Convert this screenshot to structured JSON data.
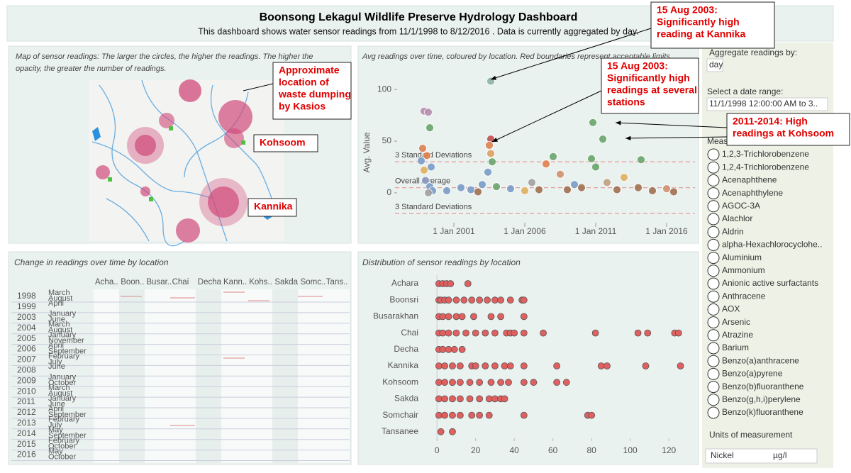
{
  "header": {
    "title": "Boonsong Lekagul Wildlife Preserve Hydrology Dashboard",
    "subtitle": "This dashboard shows water sensor readings from 11/1/1998 to 8/12/2016 . Data is currently aggregated by day."
  },
  "map_panel": {
    "caption": [
      "Map of sensor readings: The larger the circles, the higher the readings. The higher the",
      "opacity, the greater the number of readings."
    ],
    "annotations": [
      {
        "lines": [
          "Approximate",
          "location of",
          "waste dumping",
          "by Kasios"
        ]
      },
      {
        "lines": [
          "Kohsoom"
        ]
      },
      {
        "lines": [
          "Kannika"
        ]
      }
    ]
  },
  "scatter_panel": {
    "caption": "Avg readings over time, coloured by location. Red boundaries represent acceptable limits.",
    "y_label": "Avg. Value",
    "xlim": [
      1997,
      2018.25
    ],
    "ylim": [
      -22,
      120
    ],
    "xticks": [
      {
        "value": 2001,
        "label": "1 Jan 2001"
      },
      {
        "value": 2006,
        "label": "1 Jan 2006"
      },
      {
        "value": 2011,
        "label": "1 Jan 2011"
      },
      {
        "value": 2016,
        "label": "1 Jan 2016"
      }
    ],
    "yticks": [
      0,
      50,
      100
    ],
    "reference_lines": [
      {
        "label": "3 Standard Deviations",
        "value": 30
      },
      {
        "label": "Overall Average",
        "value": 5
      },
      {
        "label": "3 Standard Deviations",
        "value": -20
      }
    ],
    "points": [
      {
        "x": 2003.6,
        "y": 108,
        "color": "#8fb0a8"
      },
      {
        "x": 1998.9,
        "y": 79,
        "color": "#b48fb0"
      },
      {
        "x": 1999.2,
        "y": 78,
        "color": "#b48fb0"
      },
      {
        "x": 1999.3,
        "y": 63,
        "color": "#6aa56a"
      },
      {
        "x": 1998.8,
        "y": 43,
        "color": "#e08050"
      },
      {
        "x": 1999.1,
        "y": 36,
        "color": "#e08050"
      },
      {
        "x": 1998.7,
        "y": 31,
        "color": "#7b9cc8"
      },
      {
        "x": 1999.4,
        "y": 25,
        "color": "#7b9cc8"
      },
      {
        "x": 1998.9,
        "y": 22,
        "color": "#e0b060"
      },
      {
        "x": 1999.0,
        "y": 12,
        "color": "#8a9ac0"
      },
      {
        "x": 1999.3,
        "y": 6,
        "color": "#7b9cc8"
      },
      {
        "x": 1999.5,
        "y": 2,
        "color": "#7b9cc8"
      },
      {
        "x": 1999.2,
        "y": 0,
        "color": "#a0a0a0"
      },
      {
        "x": 2003.6,
        "y": 52,
        "color": "#c05050"
      },
      {
        "x": 2003.5,
        "y": 46,
        "color": "#e08050"
      },
      {
        "x": 2003.6,
        "y": 38,
        "color": "#e0a060"
      },
      {
        "x": 2003.7,
        "y": 30,
        "color": "#6aa56a"
      },
      {
        "x": 2003.4,
        "y": 20,
        "color": "#7b9cc8"
      },
      {
        "x": 2001.5,
        "y": 5,
        "color": "#7b9cc8"
      },
      {
        "x": 2002.2,
        "y": 3,
        "color": "#7b9cc8"
      },
      {
        "x": 2003,
        "y": 8,
        "color": "#7b9cc8"
      },
      {
        "x": 2004,
        "y": 6,
        "color": "#6aa56a"
      },
      {
        "x": 2005,
        "y": 4,
        "color": "#7b9cc8"
      },
      {
        "x": 2006,
        "y": 2,
        "color": "#e0b060"
      },
      {
        "x": 2006.5,
        "y": 10,
        "color": "#a0a0a0"
      },
      {
        "x": 2007.5,
        "y": 28,
        "color": "#e08050"
      },
      {
        "x": 2008,
        "y": 35,
        "color": "#6aa56a"
      },
      {
        "x": 2008.5,
        "y": 18,
        "color": "#d09070"
      },
      {
        "x": 2009,
        "y": 3,
        "color": "#a07050"
      },
      {
        "x": 2010,
        "y": 5,
        "color": "#a07050"
      },
      {
        "x": 2010.8,
        "y": 68,
        "color": "#6aa56a"
      },
      {
        "x": 2011.5,
        "y": 52,
        "color": "#6aa56a"
      },
      {
        "x": 2010.7,
        "y": 33,
        "color": "#6aa56a"
      },
      {
        "x": 2011,
        "y": 25,
        "color": "#6aa56a"
      },
      {
        "x": 2011.8,
        "y": 10,
        "color": "#c0a080"
      },
      {
        "x": 2012.5,
        "y": 3,
        "color": "#a07050"
      },
      {
        "x": 2013,
        "y": 15,
        "color": "#e0b060"
      },
      {
        "x": 2014.2,
        "y": 32,
        "color": "#6aa56a"
      },
      {
        "x": 2014,
        "y": 5,
        "color": "#a07050"
      },
      {
        "x": 2015,
        "y": 2,
        "color": "#a07050"
      },
      {
        "x": 2016,
        "y": 4,
        "color": "#d09070"
      },
      {
        "x": 2016.5,
        "y": 1,
        "color": "#a07050"
      },
      {
        "x": 2000.5,
        "y": 2,
        "color": "#7b9cc8"
      },
      {
        "x": 2002.7,
        "y": 1,
        "color": "#a07050"
      },
      {
        "x": 2007,
        "y": 3,
        "color": "#a07050"
      },
      {
        "x": 2009.5,
        "y": 8,
        "color": "#7b9cc8"
      }
    ],
    "annotations": [
      {
        "lines": [
          "15 Aug 2003:",
          "Significantly high",
          "reading at Kannika"
        ]
      },
      {
        "lines": [
          "15 Aug 2003:",
          "Significantly high",
          "readings at several",
          "stations"
        ]
      },
      {
        "lines": [
          "2011-2014: High",
          "readings at Kohsoom"
        ]
      }
    ]
  },
  "heatmap_panel": {
    "caption": "Change in readings over time by location",
    "columns": [
      "Acha..",
      "Boon..",
      "Busar..",
      "Chai",
      "Decha",
      "Kann..",
      "Kohs..",
      "Sakda",
      "Somc..",
      "Tans.."
    ],
    "rows": [
      {
        "year": "1998",
        "months": [
          "March",
          "August"
        ]
      },
      {
        "year": "1999",
        "months": [
          "April"
        ]
      },
      {
        "year": "2003",
        "months": [
          "January",
          "June"
        ]
      },
      {
        "year": "2004",
        "months": [
          "March",
          "August"
        ]
      },
      {
        "year": "2005",
        "months": [
          "January",
          "November"
        ]
      },
      {
        "year": "2006",
        "months": [
          "April",
          "September"
        ]
      },
      {
        "year": "2007",
        "months": [
          "February",
          "July"
        ]
      },
      {
        "year": "2008",
        "months": [
          "June"
        ]
      },
      {
        "year": "2009",
        "months": [
          "January",
          "October"
        ]
      },
      {
        "year": "2010",
        "months": [
          "March",
          "August"
        ]
      },
      {
        "year": "2011",
        "months": [
          "January",
          "June"
        ]
      },
      {
        "year": "2012",
        "months": [
          "April",
          "September"
        ]
      },
      {
        "year": "2013",
        "months": [
          "February",
          "July"
        ]
      },
      {
        "year": "2014",
        "months": [
          "May",
          "September"
        ]
      },
      {
        "year": "2015",
        "months": [
          "February",
          "October"
        ]
      },
      {
        "year": "2016",
        "months": [
          "May",
          "October"
        ]
      }
    ]
  },
  "distribution_panel": {
    "caption": "Distribution of sensor readings by location",
    "xlim": [
      -3,
      128
    ],
    "xticks": [
      0,
      20,
      40,
      60,
      80,
      100,
      120
    ],
    "categories": [
      "Achara",
      "Boonsri",
      "Busarakhan",
      "Chai",
      "Decha",
      "Kannika",
      "Kohsoom",
      "Sakda",
      "Somchair",
      "Tansanee"
    ],
    "values": [
      [
        1,
        3,
        5,
        7,
        16
      ],
      [
        1,
        2,
        4,
        6,
        10,
        14,
        18,
        22,
        26,
        30,
        33,
        38,
        44,
        45
      ],
      [
        1,
        3,
        6,
        10,
        13,
        19,
        28,
        33,
        45
      ],
      [
        1,
        3,
        6,
        10,
        15,
        20,
        25,
        30,
        36,
        38,
        40,
        45,
        55,
        82,
        104,
        109,
        123,
        125
      ],
      [
        1,
        3,
        6,
        9,
        13
      ],
      [
        1,
        4,
        8,
        12,
        18,
        20,
        25,
        30,
        35,
        38,
        45,
        62,
        85,
        88,
        108,
        126
      ],
      [
        1,
        4,
        8,
        12,
        17,
        22,
        28,
        33,
        37,
        45,
        50,
        62,
        67
      ],
      [
        1,
        4,
        8,
        12,
        17,
        22,
        27,
        30,
        33,
        35
      ],
      [
        1,
        4,
        8,
        12,
        18,
        22,
        27,
        45,
        78,
        80
      ],
      [
        2,
        8
      ]
    ]
  },
  "sidebar": {
    "aggregate_label": "Aggregate readings by:",
    "aggregate_value": "day",
    "date_label": "Select a date range:",
    "date_value": "11/1/1998 12:00:00 AM to 3..",
    "measure_label": "Measure",
    "measures": [
      "1,2,3-Trichlorobenzene",
      "1,2,4-Trichlorobenzene",
      "Acenaphthene",
      "Acenaphthylene",
      "AGOC-3A",
      "Alachlor",
      "Aldrin",
      "alpha-Hexachlorocyclohe..",
      "Aluminium",
      "Ammonium",
      "Anionic active surfactants",
      "Anthracene",
      "AOX",
      "Arsenic",
      "Atrazine",
      "Barium",
      "Benzo(a)anthracene",
      "Benzo(a)pyrene",
      "Benzo(b)fluoranthene",
      "Benzo(g,h,i)perylene",
      "Benzo(k)fluoranthene"
    ],
    "units_label": "Units of measurement",
    "units_measure": "Nickel",
    "units_value": "µg/l"
  }
}
